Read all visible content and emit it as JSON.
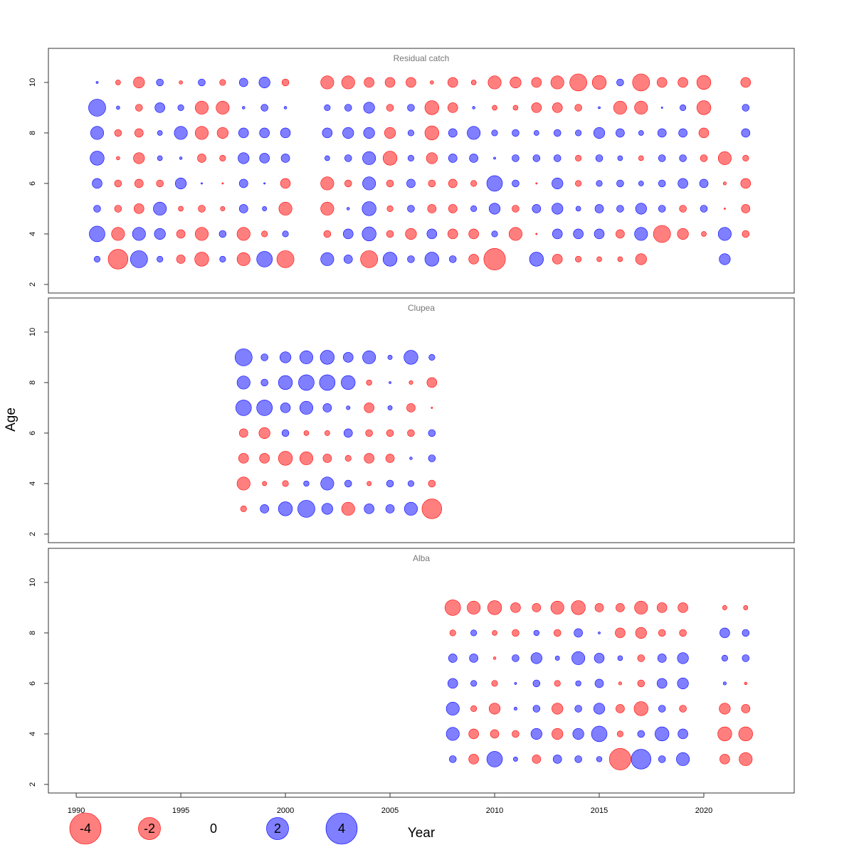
{
  "xlabel": "Year",
  "ylabel": "Age",
  "legend_values": [
    -4,
    -2,
    0,
    2,
    4
  ],
  "chart_data": [
    {
      "type": "bubble",
      "title": "Residual catch",
      "x": [
        1991,
        1992,
        1993,
        1994,
        1995,
        1996,
        1997,
        1998,
        1999,
        2000,
        2002,
        2003,
        2004,
        2005,
        2006,
        2007,
        2008,
        2009,
        2010,
        2011,
        2012,
        2013,
        2014,
        2015,
        2016,
        2017,
        2018,
        2019,
        2020,
        2021,
        2022
      ],
      "ages": [
        3,
        4,
        5,
        6,
        7,
        8,
        9,
        10
      ],
      "values": [
        [
          0.15,
          -1.6,
          1.2,
          0.15,
          -0.3,
          -0.8,
          0.15,
          -0.7,
          1.0,
          -1.2,
          0.7,
          0.3,
          -1.2,
          0.8,
          0.2,
          0.8,
          0.2,
          -0.4,
          -1.9,
          null,
          0.8,
          -0.4,
          -0.15,
          -0.1,
          -0.1,
          -0.5,
          null,
          null,
          null,
          0.5,
          null
        ],
        [
          1.0,
          -0.7,
          0.7,
          0.5,
          -0.3,
          -0.7,
          0.2,
          -0.7,
          -0.15,
          0.15,
          -0.2,
          0.4,
          0.8,
          -0.2,
          -0.5,
          0.4,
          -0.4,
          -0.4,
          0.15,
          -0.7,
          -0.01,
          0.4,
          0.4,
          0.4,
          -0.3,
          0.7,
          -1.2,
          -0.5,
          -0.1,
          0.7,
          -0.2
        ],
        [
          0.2,
          -0.2,
          -0.4,
          0.7,
          -0.1,
          -0.2,
          -0.08,
          0.3,
          0.08,
          -0.7,
          -0.7,
          0.03,
          0.8,
          -0.15,
          0.2,
          -0.3,
          -0.3,
          0.15,
          0.5,
          -0.2,
          0.3,
          0.5,
          0.1,
          0.3,
          0.2,
          0.5,
          0.2,
          -0.2,
          0.2,
          -0.01,
          -0.3
        ],
        [
          0.4,
          -0.2,
          -0.3,
          -0.2,
          0.5,
          0.01,
          -0.01,
          0.3,
          0.01,
          -0.4,
          -0.7,
          -0.2,
          0.7,
          -0.2,
          0.3,
          -0.2,
          -0.3,
          -0.15,
          1.0,
          0.2,
          -0.01,
          0.5,
          -0.15,
          0.15,
          0.2,
          0.1,
          0.2,
          0.4,
          0.3,
          -0.04,
          -0.4
        ],
        [
          0.8,
          -0.05,
          -0.5,
          0.1,
          0.03,
          -0.3,
          -0.15,
          0.5,
          0.4,
          0.3,
          0.1,
          0.2,
          0.7,
          -0.8,
          0.15,
          -0.5,
          0.3,
          0.3,
          0.02,
          0.2,
          0.2,
          0.2,
          -0.15,
          0.2,
          0.1,
          -0.1,
          0.2,
          0.2,
          -0.2,
          -0.7,
          -0.15
        ],
        [
          0.7,
          -0.2,
          -0.3,
          0.1,
          0.7,
          -0.7,
          -0.5,
          0.4,
          0.4,
          0.4,
          0.4,
          0.5,
          0.5,
          -0.5,
          0.15,
          -0.8,
          0.3,
          0.7,
          0.15,
          0.2,
          0.1,
          0.2,
          0.15,
          0.5,
          0.3,
          0.1,
          0.3,
          0.3,
          -0.4,
          null,
          0.3
        ],
        [
          1.2,
          0.05,
          -0.2,
          0.4,
          0.15,
          -0.7,
          -0.7,
          0.03,
          0.2,
          0.03,
          0.15,
          0.2,
          0.5,
          -0.2,
          0.2,
          -0.8,
          -0.4,
          0.03,
          -0.1,
          -0.1,
          -0.4,
          -0.4,
          -0.2,
          0.02,
          -0.7,
          -0.7,
          0.01,
          0.15,
          -0.8,
          null,
          0.2
        ],
        [
          0.02,
          -0.1,
          -0.5,
          0.2,
          -0.05,
          0.2,
          -0.15,
          0.3,
          0.5,
          -0.2,
          -0.7,
          -0.7,
          -0.4,
          -0.4,
          -0.4,
          -0.05,
          -0.4,
          -0.1,
          -0.7,
          -0.5,
          -0.4,
          -0.7,
          -1.2,
          -0.8,
          0.2,
          -1.2,
          -0.4,
          -0.4,
          -0.8,
          null,
          -0.4
        ]
      ],
      "xlim": [
        1988.67,
        2024.32
      ],
      "ylim": [
        1.66,
        11.35
      ],
      "yticks": [
        2,
        4,
        6,
        8,
        10
      ],
      "positive_color": "#0000ff",
      "negative_color": "#ff0000"
    },
    {
      "type": "bubble",
      "title": "Clupea",
      "x": [
        1998,
        1999,
        2000,
        2001,
        2002,
        2003,
        2004,
        2005,
        2006,
        2007
      ],
      "ages": [
        3,
        4,
        5,
        6,
        7,
        8,
        9
      ],
      "values": [
        [
          -0.15,
          0.3,
          0.8,
          1.2,
          0.5,
          -0.7,
          0.4,
          0.3,
          0.7,
          -1.6
        ],
        [
          -0.7,
          -0.08,
          -0.15,
          0.12,
          0.7,
          0.2,
          -0.08,
          0.2,
          0.15,
          -0.2
        ],
        [
          -0.4,
          -0.4,
          -0.8,
          -0.7,
          -0.3,
          -0.15,
          -0.4,
          -0.3,
          0.03,
          0.2
        ],
        [
          -0.3,
          -0.5,
          0.2,
          -0.1,
          -0.1,
          0.3,
          -0.2,
          -0.2,
          -0.2,
          0.2
        ],
        [
          1.0,
          1.0,
          0.4,
          0.7,
          0.3,
          0.06,
          -0.4,
          0.08,
          -0.3,
          -0.01
        ],
        [
          0.7,
          0.2,
          0.8,
          1.0,
          1.0,
          0.8,
          -0.12,
          0.02,
          -0.06,
          -0.4
        ],
        [
          1.2,
          0.2,
          0.5,
          0.7,
          0.8,
          0.4,
          0.7,
          0.08,
          0.8,
          0.15
        ]
      ],
      "xlim": [
        1988.67,
        2024.32
      ],
      "ylim": [
        1.66,
        11.35
      ],
      "yticks": [
        2,
        4,
        6,
        8,
        10
      ],
      "positive_color": "#0000ff",
      "negative_color": "#ff0000"
    },
    {
      "type": "bubble",
      "title": "Alba",
      "x": [
        2008,
        2009,
        2010,
        2011,
        2012,
        2013,
        2014,
        2015,
        2016,
        2017,
        2018,
        2019,
        2021,
        2022
      ],
      "ages": [
        3,
        4,
        5,
        6,
        7,
        8,
        9
      ],
      "values": [
        [
          0.2,
          -0.4,
          1.0,
          0.08,
          -0.3,
          0.3,
          0.2,
          0.12,
          -1.9,
          1.6,
          0.2,
          0.7,
          -0.4,
          -0.7
        ],
        [
          0.7,
          -0.4,
          -0.3,
          -0.2,
          0.5,
          -0.5,
          0.5,
          1.0,
          -0.15,
          0.2,
          0.8,
          0.4,
          -0.8,
          -0.8
        ],
        [
          0.7,
          -0.15,
          -0.5,
          0.04,
          0.2,
          -0.5,
          0.2,
          0.5,
          -0.3,
          -0.8,
          0.2,
          -0.2,
          -0.5,
          -0.3
        ],
        [
          0.4,
          0.15,
          -0.15,
          0.02,
          0.2,
          -0.15,
          0.12,
          0.3,
          -0.04,
          -0.2,
          0.4,
          0.5,
          0.04,
          -0.03
        ],
        [
          0.3,
          0.3,
          -0.03,
          0.2,
          0.5,
          0.08,
          0.7,
          0.4,
          0.1,
          -0.2,
          0.3,
          0.5,
          0.15,
          0.2
        ],
        [
          -0.15,
          0.15,
          -0.1,
          -0.2,
          0.12,
          -0.2,
          0.3,
          0.02,
          -0.4,
          -0.5,
          -0.2,
          -0.2,
          0.4,
          0.2
        ],
        [
          -1.0,
          -0.7,
          -0.8,
          -0.4,
          -0.3,
          -0.7,
          -0.8,
          -0.3,
          -0.3,
          -0.7,
          -0.4,
          -0.4,
          -0.08,
          -0.08
        ]
      ],
      "xlim": [
        1988.67,
        2024.32
      ],
      "ylim": [
        1.66,
        11.35
      ],
      "yticks": [
        2,
        4,
        6,
        8,
        10
      ],
      "xticks": [
        1990,
        1995,
        2000,
        2005,
        2010,
        2015,
        2020
      ],
      "positive_color": "#0000ff",
      "negative_color": "#ff0000"
    }
  ]
}
